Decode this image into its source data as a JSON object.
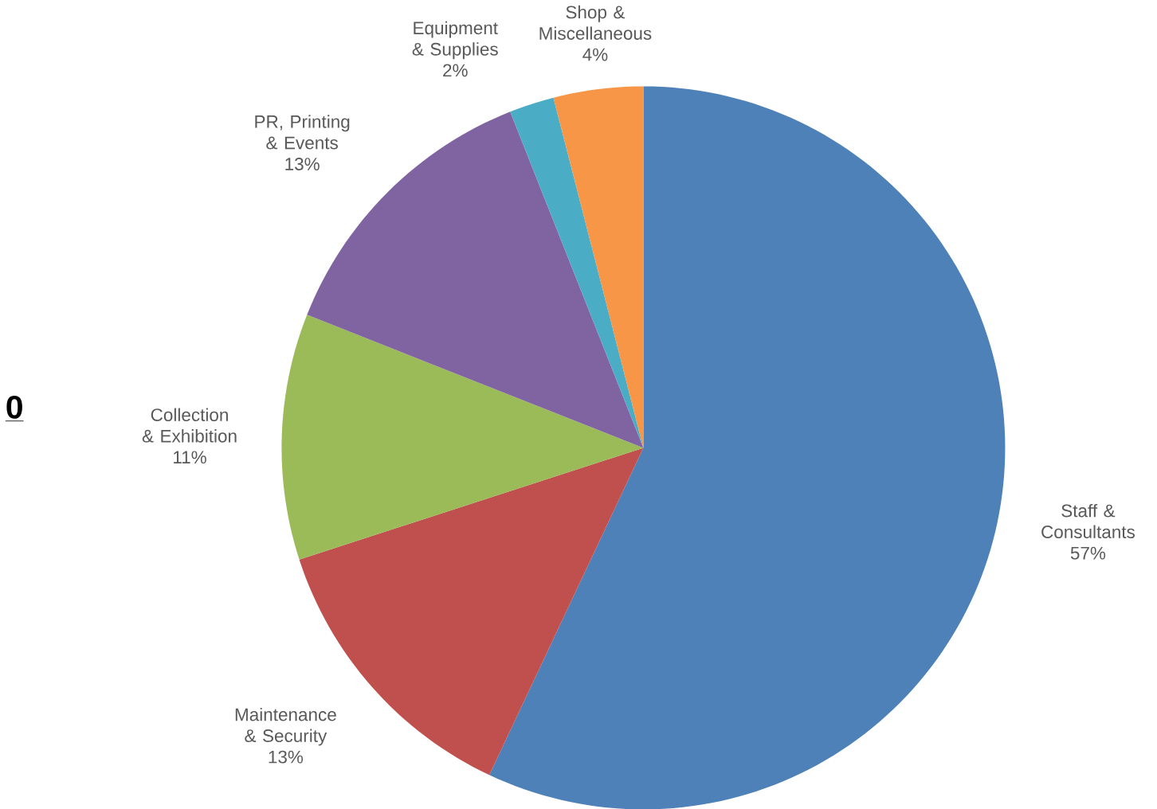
{
  "chart_data": {
    "type": "pie",
    "categories": [
      "Staff & Consultants",
      "Maintenance & Security",
      "Collection & Exhibition",
      "PR, Printing & Events",
      "Equipment & Supplies",
      "Shop & Miscellaneous"
    ],
    "values": [
      57,
      13,
      11,
      13,
      2,
      4
    ],
    "value_labels": [
      "57%",
      "13%",
      "11%",
      "13%",
      "2%",
      "4%"
    ],
    "colors": [
      "#4f81b9",
      "#c0504d",
      "#9bbb59",
      "#8064a2",
      "#4bacc6",
      "#f79646"
    ],
    "annotations": [
      "0"
    ]
  }
}
